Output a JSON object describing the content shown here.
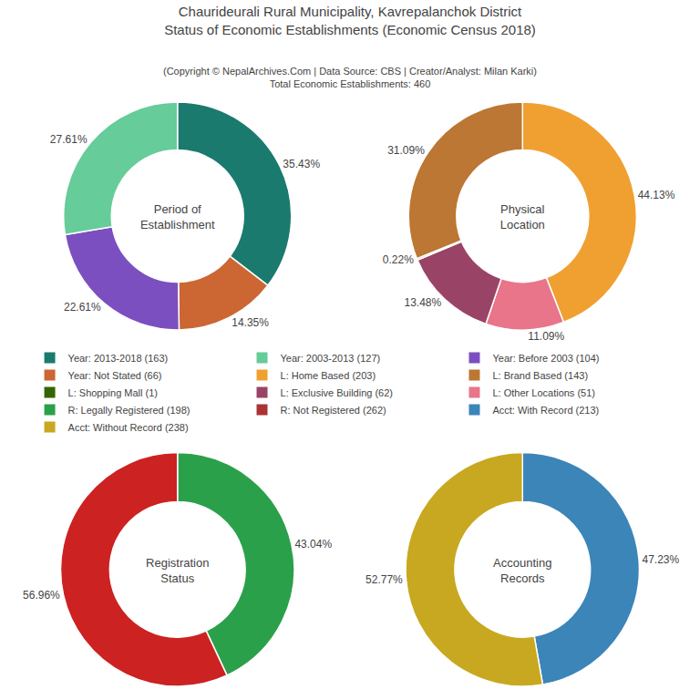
{
  "chart_data": {
    "title": "Chaurideurali Rural Municipality, Kavrepalanchok District\nStatus of Economic Establishments (Economic Census 2018)",
    "subtitle": "(Copyright © NepalArchives.Com | Data Source: CBS | Creator/Analyst: Milan Karki)\nTotal Economic Establishments: 460",
    "legend_items": [
      {
        "name": "Year: 2013-2018 (163)",
        "color": "#1a7a6e"
      },
      {
        "name": "Year: 2003-2013 (127)",
        "color": "#66CC99"
      },
      {
        "name": "Year: Before 2003 (104)",
        "color": "#7B4FC0"
      },
      {
        "name": "Year: Not Stated (66)",
        "color": "#CC6633"
      },
      {
        "name": "L: Home Based (203)",
        "color": "#F0A030"
      },
      {
        "name": "L: Brand Based (143)",
        "color": "#BB7733"
      },
      {
        "name": "L: Shopping Mall (1)",
        "color": "#336600"
      },
      {
        "name": "L: Exclusive Building (62)",
        "color": "#994466"
      },
      {
        "name": "L: Other Locations (51)",
        "color": "#E8758A"
      },
      {
        "name": "R: Legally Registered (198)",
        "color": "#2BA04A"
      },
      {
        "name": "R: Not Registered (262)",
        "color": "#AA3333"
      },
      {
        "name": "Acct: With Record (213)",
        "color": "#3B85B8"
      },
      {
        "name": "Acct: Without Record (238)",
        "color": "#C8A820"
      }
    ],
    "charts": [
      {
        "type": "pie",
        "title": "Period of\nEstablishment",
        "values": [
          35.43,
          14.35,
          22.61,
          27.61
        ],
        "value_labels": [
          "35.43%",
          "14.35%",
          "22.61%",
          "27.61%"
        ],
        "colors": [
          "#1a7a6e",
          "#CC6633",
          "#7B4FC0",
          "#66CC99"
        ],
        "data_labels": true
      },
      {
        "type": "pie",
        "title": "Physical\nLocation",
        "values": [
          44.13,
          11.09,
          13.48,
          0.22,
          31.09
        ],
        "value_labels": [
          "44.13%",
          "11.09%",
          "13.48%",
          "0.22%",
          "31.09%"
        ],
        "colors": [
          "#F0A030",
          "#E8758A",
          "#994466",
          "#AA2222",
          "#BB7733"
        ],
        "data_labels": true
      },
      {
        "type": "pie",
        "title": "Registration\nStatus",
        "values": [
          43.04,
          56.96
        ],
        "value_labels": [
          "43.04%",
          "56.96%"
        ],
        "colors": [
          "#2BA04A",
          "#CC2222"
        ],
        "data_labels": true
      },
      {
        "type": "pie",
        "title": "Accounting\nRecords",
        "values": [
          47.23,
          52.77
        ],
        "value_labels": [
          "47.23%",
          "52.77%"
        ],
        "colors": [
          "#3B85B8",
          "#C8A820"
        ],
        "data_labels": true
      }
    ]
  }
}
